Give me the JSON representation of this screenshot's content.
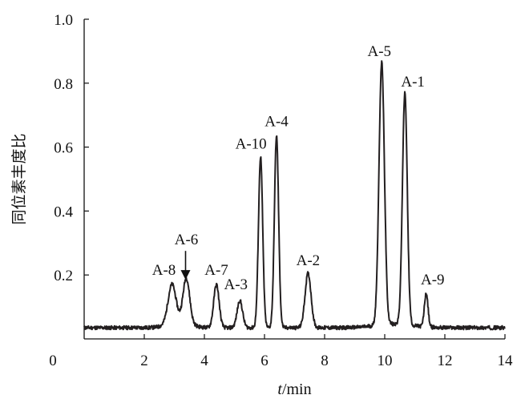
{
  "chart_data": {
    "type": "line",
    "title": "",
    "xlabel_prefix": "t",
    "xlabel_suffix": "/min",
    "ylabel": "同位素丰度比",
    "xlim": [
      0,
      14
    ],
    "ylim": [
      0,
      1.0
    ],
    "x_ticks": [
      "0",
      "2",
      "4",
      "6",
      "8",
      "10",
      "12",
      "14"
    ],
    "y_ticks": [
      "0.2",
      "0.4",
      "0.6",
      "0.8",
      "1.0"
    ],
    "grid": false,
    "legend": "none",
    "line_color": "#231f20",
    "baseline": 0.035,
    "peaks": [
      {
        "label": "A-8",
        "x": 2.92,
        "y": 0.155,
        "width": 0.13
      },
      {
        "label": "A-6",
        "x": 3.4,
        "y": 0.175,
        "width": 0.11
      },
      {
        "label": "A-7",
        "x": 4.4,
        "y": 0.17,
        "width": 0.09
      },
      {
        "label": "A-3",
        "x": 5.18,
        "y": 0.12,
        "width": 0.09
      },
      {
        "label": "A-10",
        "x": 5.87,
        "y": 0.57,
        "width": 0.07
      },
      {
        "label": "A-4",
        "x": 6.4,
        "y": 0.635,
        "width": 0.07
      },
      {
        "label": "A-2",
        "x": 7.45,
        "y": 0.205,
        "width": 0.1
      },
      {
        "label": "A-5",
        "x": 9.9,
        "y": 0.855,
        "width": 0.09
      },
      {
        "label": "A-1",
        "x": 10.67,
        "y": 0.76,
        "width": 0.08
      },
      {
        "label": "A-9",
        "x": 11.38,
        "y": 0.14,
        "width": 0.06
      }
    ]
  }
}
